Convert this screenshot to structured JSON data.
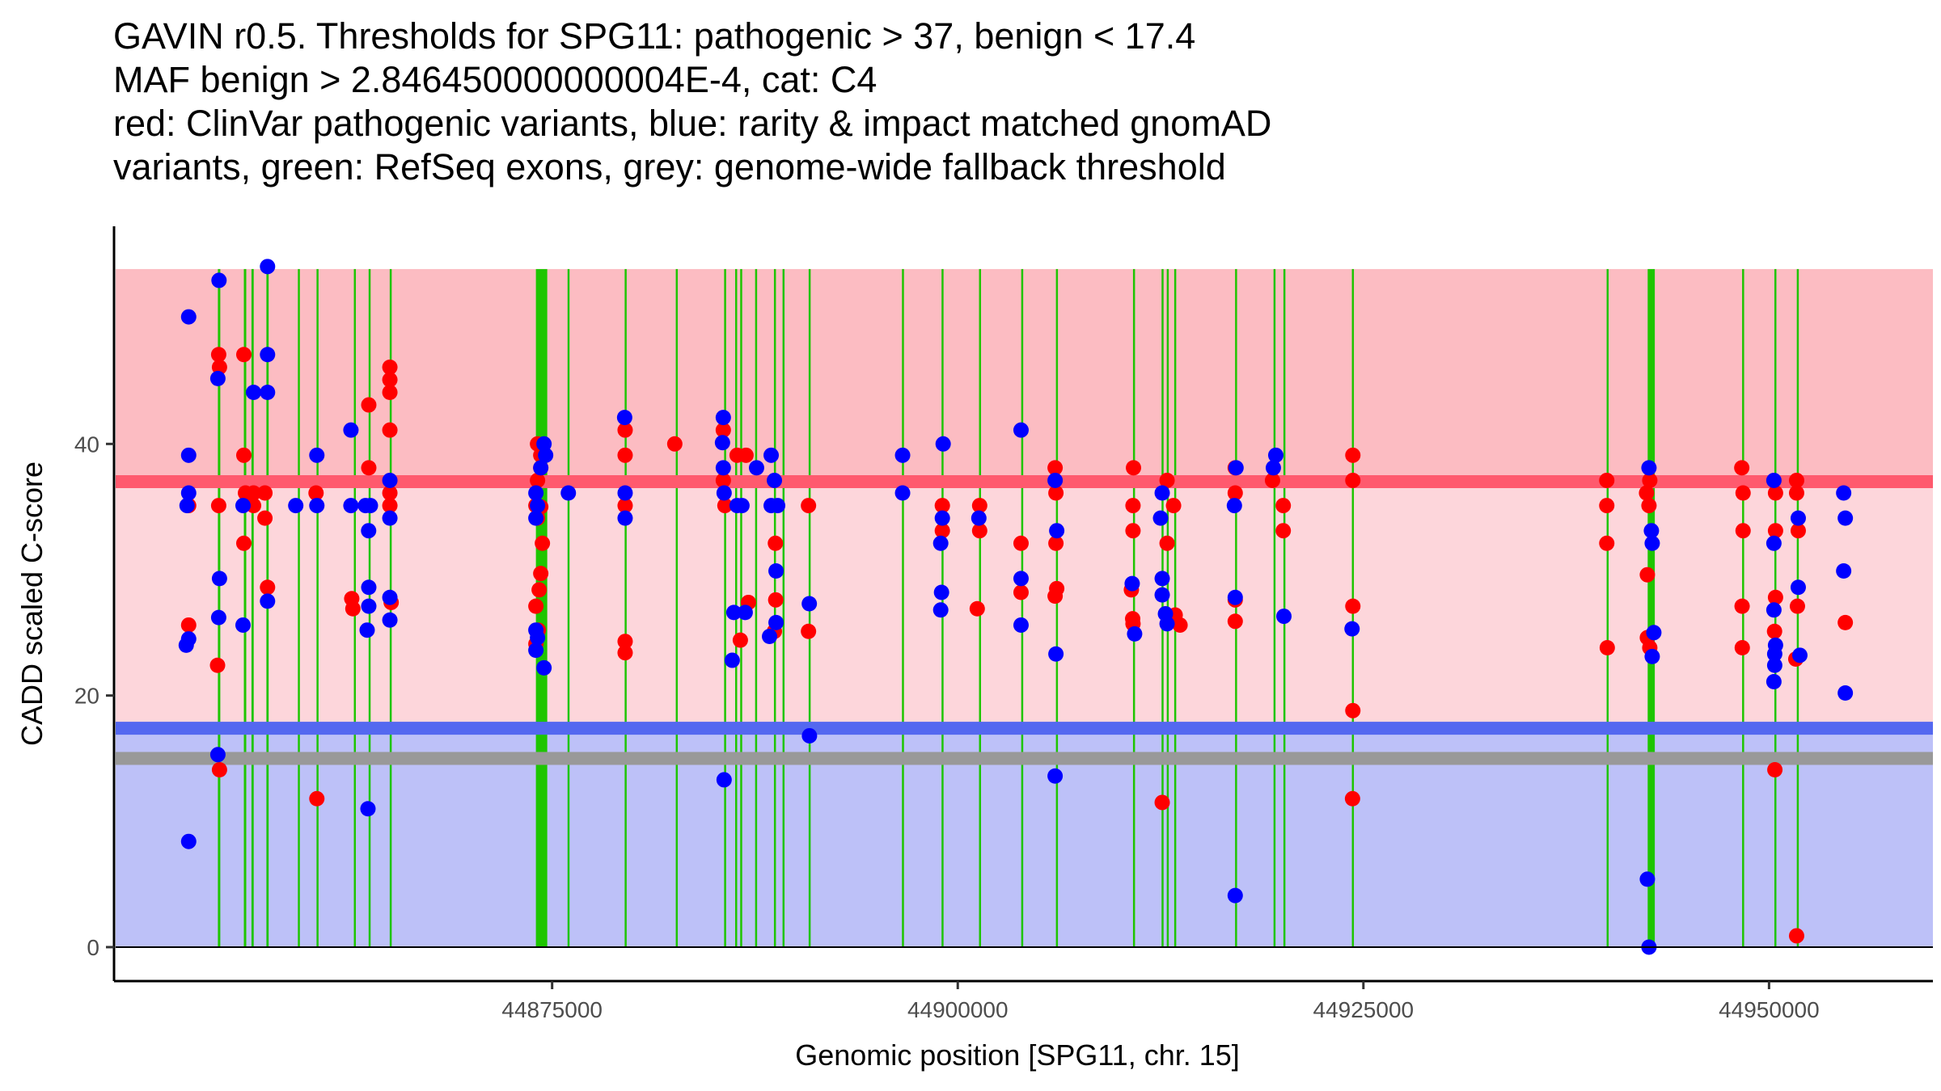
{
  "chart_data": {
    "type": "scatter",
    "title_lines": [
      "GAVIN r0.5. Thresholds for SPG11: pathogenic > 37, benign < 17.4",
      "MAF benign > 2.846450000000004E-4, cat: C4",
      "red: ClinVar pathogenic variants, blue: rarity & impact matched gnomAD",
      "variants, green: RefSeq exons, grey: genome-wide fallback threshold"
    ],
    "xlabel": "Genomic position [SPG11, chr. 15]",
    "ylabel": "CADD scaled C-score",
    "xlim": [
      44848000,
      44960100
    ],
    "ylim": [
      -2.7,
      57.3
    ],
    "xticks": [
      44875000,
      44900000,
      44925000,
      44950000
    ],
    "xtick_labels": [
      "44875000",
      "44900000",
      "44925000",
      "44950000"
    ],
    "yticks": [
      0,
      20,
      40
    ],
    "ytick_labels": [
      "0",
      "20",
      "40"
    ],
    "grid": false,
    "legend": "none",
    "colors": {
      "pathogenic_band": "#fcbcc2",
      "vus_band": "#fdd6db",
      "benign_band": "#bdc1f8",
      "pathogenic_line": "#ff5a6e",
      "benign_line": "#5468f0",
      "fallback_line": "#999999",
      "exon": "#1ec500",
      "clinvar_point": "#ff0000",
      "gnomad_point": "#0000ff"
    },
    "thresholds": {
      "pathogenic": 37,
      "benign": 17.4,
      "fallback": 15,
      "band_top": 53.9,
      "band_bottom": 0
    },
    "exons": [
      [
        44854400,
        44854550
      ],
      [
        44856000,
        44856150
      ],
      [
        44856470,
        44856610
      ],
      [
        44857390,
        44857530
      ],
      [
        44859330,
        44859420
      ],
      [
        44860480,
        44860570
      ],
      [
        44862780,
        44862870
      ],
      [
        44863690,
        44863790
      ],
      [
        44864990,
        44865090
      ],
      [
        44874000,
        44874700
      ],
      [
        44875950,
        44876040
      ],
      [
        44879470,
        44879570
      ],
      [
        44882620,
        44882700
      ],
      [
        44885600,
        44885700
      ],
      [
        44886280,
        44886390
      ],
      [
        44886590,
        44886700
      ],
      [
        44887510,
        44887610
      ],
      [
        44888670,
        44888760
      ],
      [
        44889200,
        44889300
      ],
      [
        44890810,
        44890900
      ],
      [
        44896560,
        44896640
      ],
      [
        44899000,
        44899100
      ],
      [
        44901310,
        44901390
      ],
      [
        44903910,
        44904000
      ],
      [
        44906050,
        44906150
      ],
      [
        44910800,
        44910900
      ],
      [
        44912560,
        44912660
      ],
      [
        44912880,
        44912960
      ],
      [
        44913340,
        44913420
      ],
      [
        44917090,
        44917170
      ],
      [
        44919460,
        44919550
      ],
      [
        44920070,
        44920160
      ],
      [
        44924290,
        44924370
      ],
      [
        44939990,
        44940080
      ],
      [
        44942520,
        44942960
      ],
      [
        44948340,
        44948430
      ],
      [
        44950330,
        44950420
      ],
      [
        44951710,
        44951800
      ]
    ],
    "series": [
      {
        "name": "ClinVar pathogenic variants",
        "color": "#ff0000",
        "points": [
          [
            44852600,
            25.6
          ],
          [
            44852600,
            35.1
          ],
          [
            44854450,
            47.1
          ],
          [
            44854500,
            46.1
          ],
          [
            44854450,
            35.1
          ],
          [
            44854380,
            22.4
          ],
          [
            44854500,
            14.1
          ],
          [
            44856000,
            39.1
          ],
          [
            44856100,
            36.1
          ],
          [
            44856000,
            47.1
          ],
          [
            44856000,
            32.1
          ],
          [
            44856600,
            36.1
          ],
          [
            44856600,
            35.1
          ],
          [
            44857300,
            36.1
          ],
          [
            44857300,
            34.1
          ],
          [
            44857460,
            28.6
          ],
          [
            44860500,
            11.8
          ],
          [
            44860450,
            36.1
          ],
          [
            44862650,
            27.7
          ],
          [
            44862720,
            26.9
          ],
          [
            44863700,
            43.1
          ],
          [
            44863700,
            38.1
          ],
          [
            44865000,
            46.1
          ],
          [
            44865000,
            45.1
          ],
          [
            44865000,
            44.1
          ],
          [
            44865000,
            41.1
          ],
          [
            44865000,
            36.1
          ],
          [
            44865000,
            35.1
          ],
          [
            44865080,
            27.4
          ],
          [
            44874100,
            40.0
          ],
          [
            44874300,
            39.1
          ],
          [
            44874300,
            38.1
          ],
          [
            44874100,
            37.1
          ],
          [
            44874000,
            35.1
          ],
          [
            44874300,
            35.0
          ],
          [
            44874100,
            34.1
          ],
          [
            44874400,
            32.1
          ],
          [
            44874300,
            29.7
          ],
          [
            44874200,
            28.4
          ],
          [
            44874000,
            27.1
          ],
          [
            44874150,
            25.2
          ],
          [
            44874000,
            24.1
          ],
          [
            44879500,
            41.1
          ],
          [
            44879500,
            39.1
          ],
          [
            44879500,
            35.1
          ],
          [
            44879500,
            24.3
          ],
          [
            44879500,
            23.4
          ],
          [
            44882560,
            40.0
          ],
          [
            44885550,
            41.1
          ],
          [
            44885550,
            37.1
          ],
          [
            44885650,
            35.1
          ],
          [
            44886400,
            39.1
          ],
          [
            44886950,
            39.1
          ],
          [
            44886600,
            24.4
          ],
          [
            44887100,
            27.4
          ],
          [
            44888700,
            25.1
          ],
          [
            44888780,
            27.6
          ],
          [
            44888760,
            32.1
          ],
          [
            44890800,
            25.1
          ],
          [
            44890800,
            35.1
          ],
          [
            44899050,
            35.1
          ],
          [
            44899050,
            33.1
          ],
          [
            44901350,
            35.1
          ],
          [
            44901350,
            33.1
          ],
          [
            44901200,
            26.9
          ],
          [
            44903900,
            32.1
          ],
          [
            44903900,
            28.2
          ],
          [
            44906000,
            38.1
          ],
          [
            44906050,
            36.1
          ],
          [
            44906050,
            32.1
          ],
          [
            44906100,
            28.5
          ],
          [
            44906000,
            27.9
          ],
          [
            44910830,
            38.1
          ],
          [
            44910800,
            35.1
          ],
          [
            44910800,
            33.1
          ],
          [
            44910700,
            28.4
          ],
          [
            44910780,
            26.1
          ],
          [
            44910800,
            25.7
          ],
          [
            44912900,
            37.1
          ],
          [
            44913300,
            35.1
          ],
          [
            44912900,
            32.1
          ],
          [
            44912600,
            11.5
          ],
          [
            44913400,
            26.4
          ],
          [
            44913700,
            25.6
          ],
          [
            44917100,
            38.1
          ],
          [
            44917100,
            36.1
          ],
          [
            44917100,
            27.6
          ],
          [
            44917100,
            25.9
          ],
          [
            44919400,
            37.1
          ],
          [
            44920060,
            35.1
          ],
          [
            44920060,
            33.1
          ],
          [
            44924350,
            39.1
          ],
          [
            44924350,
            37.1
          ],
          [
            44924350,
            27.1
          ],
          [
            44924350,
            18.8
          ],
          [
            44924330,
            11.8
          ],
          [
            44940000,
            37.1
          ],
          [
            44940000,
            35.1
          ],
          [
            44940000,
            32.1
          ],
          [
            44940030,
            23.8
          ],
          [
            44942450,
            36.1
          ],
          [
            44942650,
            37.1
          ],
          [
            44942600,
            35.1
          ],
          [
            44942500,
            29.6
          ],
          [
            44942500,
            24.6
          ],
          [
            44942650,
            23.8
          ],
          [
            44948320,
            38.1
          ],
          [
            44948400,
            36.1
          ],
          [
            44948400,
            33.1
          ],
          [
            44948340,
            27.1
          ],
          [
            44948350,
            23.8
          ],
          [
            44950400,
            36.1
          ],
          [
            44950400,
            33.1
          ],
          [
            44950400,
            27.8
          ],
          [
            44950340,
            25.1
          ],
          [
            44950360,
            14.1
          ],
          [
            44951700,
            37.1
          ],
          [
            44951700,
            36.1
          ],
          [
            44951800,
            33.1
          ],
          [
            44951750,
            27.1
          ],
          [
            44951650,
            22.9
          ],
          [
            44951700,
            0.9
          ],
          [
            44954700,
            25.8
          ]
        ]
      },
      {
        "name": "rarity & impact matched gnomAD variants",
        "color": "#0000ff",
        "points": [
          [
            44852600,
            50.1
          ],
          [
            44852600,
            39.1
          ],
          [
            44852600,
            36.1
          ],
          [
            44852500,
            35.1
          ],
          [
            44852600,
            24.5
          ],
          [
            44852450,
            24.0
          ],
          [
            44852600,
            8.4
          ],
          [
            44854470,
            53.0
          ],
          [
            44854400,
            45.2
          ],
          [
            44854500,
            29.3
          ],
          [
            44854450,
            26.2
          ],
          [
            44854400,
            15.3
          ],
          [
            44855950,
            35.1
          ],
          [
            44855950,
            25.6
          ],
          [
            44856600,
            44.1
          ],
          [
            44857460,
            54.1
          ],
          [
            44857460,
            47.1
          ],
          [
            44857460,
            44.1
          ],
          [
            44857460,
            27.5
          ],
          [
            44859200,
            35.1
          ],
          [
            44860500,
            39.1
          ],
          [
            44860500,
            35.1
          ],
          [
            44862600,
            41.1
          ],
          [
            44862600,
            35.1
          ],
          [
            44863500,
            35.1
          ],
          [
            44863800,
            35.1
          ],
          [
            44863690,
            33.1
          ],
          [
            44863700,
            28.6
          ],
          [
            44863700,
            27.1
          ],
          [
            44863600,
            25.2
          ],
          [
            44863650,
            11.0
          ],
          [
            44865000,
            37.1
          ],
          [
            44865000,
            34.1
          ],
          [
            44865000,
            27.8
          ],
          [
            44865000,
            26.0
          ],
          [
            44874000,
            36.1
          ],
          [
            44874500,
            40.0
          ],
          [
            44874600,
            39.1
          ],
          [
            44874100,
            35.1
          ],
          [
            44874300,
            38.1
          ],
          [
            44874000,
            34.1
          ],
          [
            44874000,
            25.2
          ],
          [
            44874100,
            24.6
          ],
          [
            44874000,
            23.6
          ],
          [
            44874500,
            22.2
          ],
          [
            44876000,
            36.1
          ],
          [
            44879470,
            42.1
          ],
          [
            44879500,
            36.1
          ],
          [
            44879500,
            34.1
          ],
          [
            44885550,
            42.1
          ],
          [
            44885500,
            40.1
          ],
          [
            44885550,
            38.1
          ],
          [
            44885600,
            36.1
          ],
          [
            44886400,
            35.1
          ],
          [
            44886700,
            35.1
          ],
          [
            44887600,
            38.1
          ],
          [
            44886200,
            26.6
          ],
          [
            44886900,
            26.6
          ],
          [
            44886100,
            22.8
          ],
          [
            44885600,
            13.3
          ],
          [
            44888500,
            39.1
          ],
          [
            44888700,
            37.1
          ],
          [
            44888800,
            29.9
          ],
          [
            44888800,
            25.8
          ],
          [
            44888400,
            24.7
          ],
          [
            44888500,
            35.1
          ],
          [
            44888900,
            35.1
          ],
          [
            44890850,
            27.3
          ],
          [
            44890860,
            16.8
          ],
          [
            44896600,
            39.1
          ],
          [
            44896600,
            36.1
          ],
          [
            44899100,
            40.0
          ],
          [
            44899050,
            34.1
          ],
          [
            44898950,
            32.1
          ],
          [
            44899000,
            28.2
          ],
          [
            44898950,
            26.8
          ],
          [
            44901300,
            34.1
          ],
          [
            44903900,
            41.1
          ],
          [
            44903900,
            29.3
          ],
          [
            44903900,
            25.6
          ],
          [
            44906000,
            37.1
          ],
          [
            44906100,
            33.1
          ],
          [
            44906050,
            23.3
          ],
          [
            44906000,
            13.6
          ],
          [
            44910750,
            28.9
          ],
          [
            44910900,
            24.9
          ],
          [
            44912500,
            34.1
          ],
          [
            44912600,
            36.1
          ],
          [
            44912600,
            29.3
          ],
          [
            44912600,
            28.0
          ],
          [
            44912800,
            26.5
          ],
          [
            44912900,
            25.7
          ],
          [
            44917150,
            38.1
          ],
          [
            44917050,
            35.1
          ],
          [
            44917100,
            27.8
          ],
          [
            44917100,
            4.1
          ],
          [
            44919450,
            38.1
          ],
          [
            44919600,
            39.1
          ],
          [
            44920100,
            26.3
          ],
          [
            44924300,
            25.3
          ],
          [
            44942600,
            38.1
          ],
          [
            44942750,
            33.1
          ],
          [
            44942800,
            32.1
          ],
          [
            44942900,
            25.0
          ],
          [
            44942800,
            23.1
          ],
          [
            44942500,
            5.4
          ],
          [
            44942600,
            0.0
          ],
          [
            44950300,
            37.1
          ],
          [
            44950300,
            32.1
          ],
          [
            44950300,
            26.8
          ],
          [
            44950400,
            24.0
          ],
          [
            44950350,
            23.3
          ],
          [
            44950350,
            22.4
          ],
          [
            44950300,
            21.1
          ],
          [
            44951800,
            34.1
          ],
          [
            44951800,
            28.6
          ],
          [
            44951900,
            23.2
          ],
          [
            44954600,
            36.1
          ],
          [
            44954700,
            34.1
          ],
          [
            44954600,
            29.9
          ],
          [
            44954700,
            20.2
          ]
        ]
      }
    ]
  }
}
